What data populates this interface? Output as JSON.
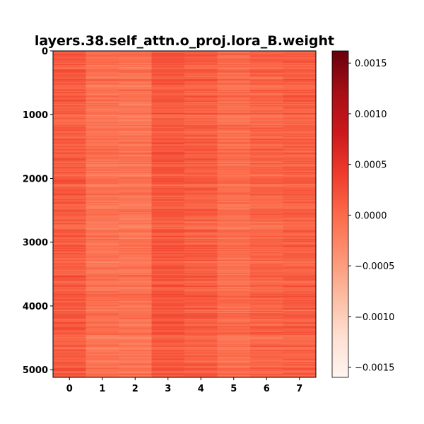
{
  "chart_data": {
    "type": "heatmap",
    "title": "layers.38.self_attn.o_proj.lora_B.weight",
    "colormap": "Reds",
    "x_ticks": [
      "0",
      "1",
      "2",
      "3",
      "4",
      "5",
      "6",
      "7"
    ],
    "y_ticks": [
      "0",
      "1000",
      "2000",
      "3000",
      "4000",
      "5000"
    ],
    "xlim": [
      -0.5,
      7.5
    ],
    "ylim": [
      5120,
      0
    ],
    "n_columns": 8,
    "n_rows": 5120,
    "column_mean_values": [
      0.00012,
      -8e-05,
      -0.0001,
      0.00016,
      0.0001,
      -4e-05,
      4e-05,
      8e-05
    ],
    "colorbar": {
      "range": [
        -0.0016,
        0.00162
      ],
      "ticks": [
        0.0015,
        0.001,
        0.0005,
        0.0,
        -0.0005,
        -0.001,
        -0.0015
      ],
      "tick_labels": [
        "0.0015",
        "0.0010",
        "0.0005",
        "0.0000",
        "−0.0005",
        "−0.0010",
        "−0.0015"
      ]
    }
  }
}
